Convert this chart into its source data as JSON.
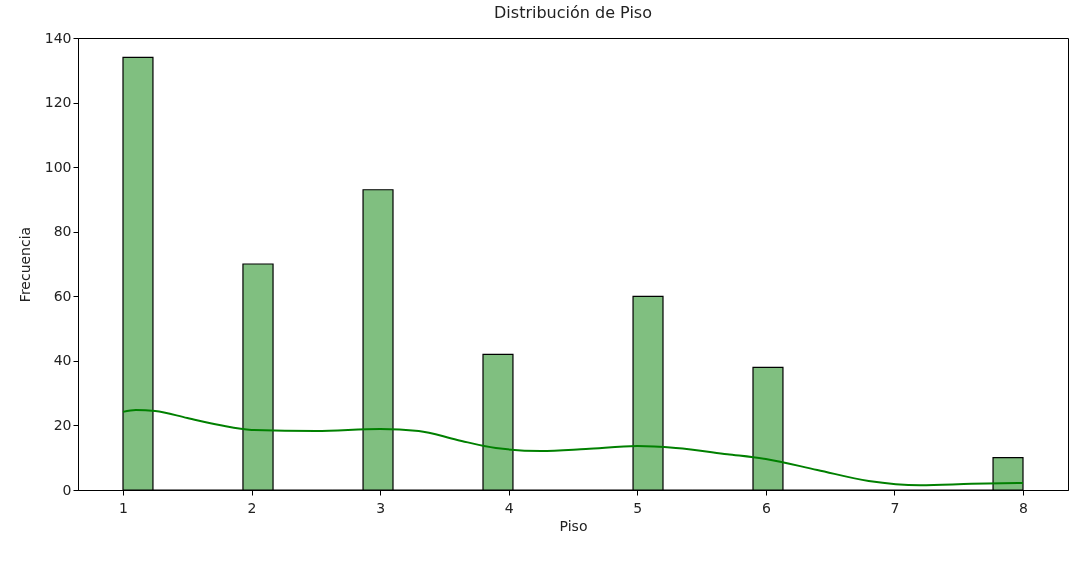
{
  "chart_data": {
    "type": "histogram",
    "title": "Distribución de Piso",
    "xlabel": "Piso",
    "ylabel": "Frecuencia",
    "bins": [
      1,
      1.233,
      1.467,
      1.7,
      1.933,
      2.167,
      2.4,
      2.633,
      2.867,
      3.1,
      3.333,
      3.567,
      3.8,
      4.033,
      4.267,
      4.5,
      4.733,
      4.967,
      5.2,
      5.433,
      5.667,
      5.9,
      6.133,
      6.367,
      6.6,
      6.833,
      7.067,
      7.3,
      7.533,
      7.767,
      8
    ],
    "series": [
      {
        "type": "histogram",
        "color": "#80bf80",
        "values": [
          134,
          0,
          0,
          0,
          70,
          0,
          0,
          0,
          93,
          0,
          0,
          0,
          42,
          0,
          0,
          0,
          0,
          60,
          0,
          0,
          0,
          38,
          0,
          0,
          0,
          0,
          0,
          0,
          0,
          10
        ]
      },
      {
        "type": "line",
        "color": "#008000",
        "x": [
          1,
          1.1,
          1.25,
          1.5,
          1.75,
          2,
          2.5,
          3,
          3.3,
          3.6,
          3.9,
          4.25,
          4.6,
          5,
          5.3,
          5.7,
          6,
          6.4,
          6.8,
          7.2,
          7.6,
          8
        ],
        "values": [
          24.2,
          24.8,
          24.5,
          22.3,
          20.1,
          18.6,
          18.3,
          18.9,
          18.3,
          15.5,
          13,
          12.1,
          12.7,
          13.6,
          13,
          11.1,
          9.6,
          6.2,
          2.8,
          1.5,
          1.9,
          2.2
        ]
      }
    ],
    "xlim": [
      0.65,
      8.35
    ],
    "xticks": [
      1,
      2,
      3,
      4,
      5,
      6,
      7,
      8
    ],
    "ylim": [
      0,
      140
    ],
    "yticks": [
      0,
      20,
      40,
      60,
      80,
      100,
      120,
      140
    ]
  }
}
